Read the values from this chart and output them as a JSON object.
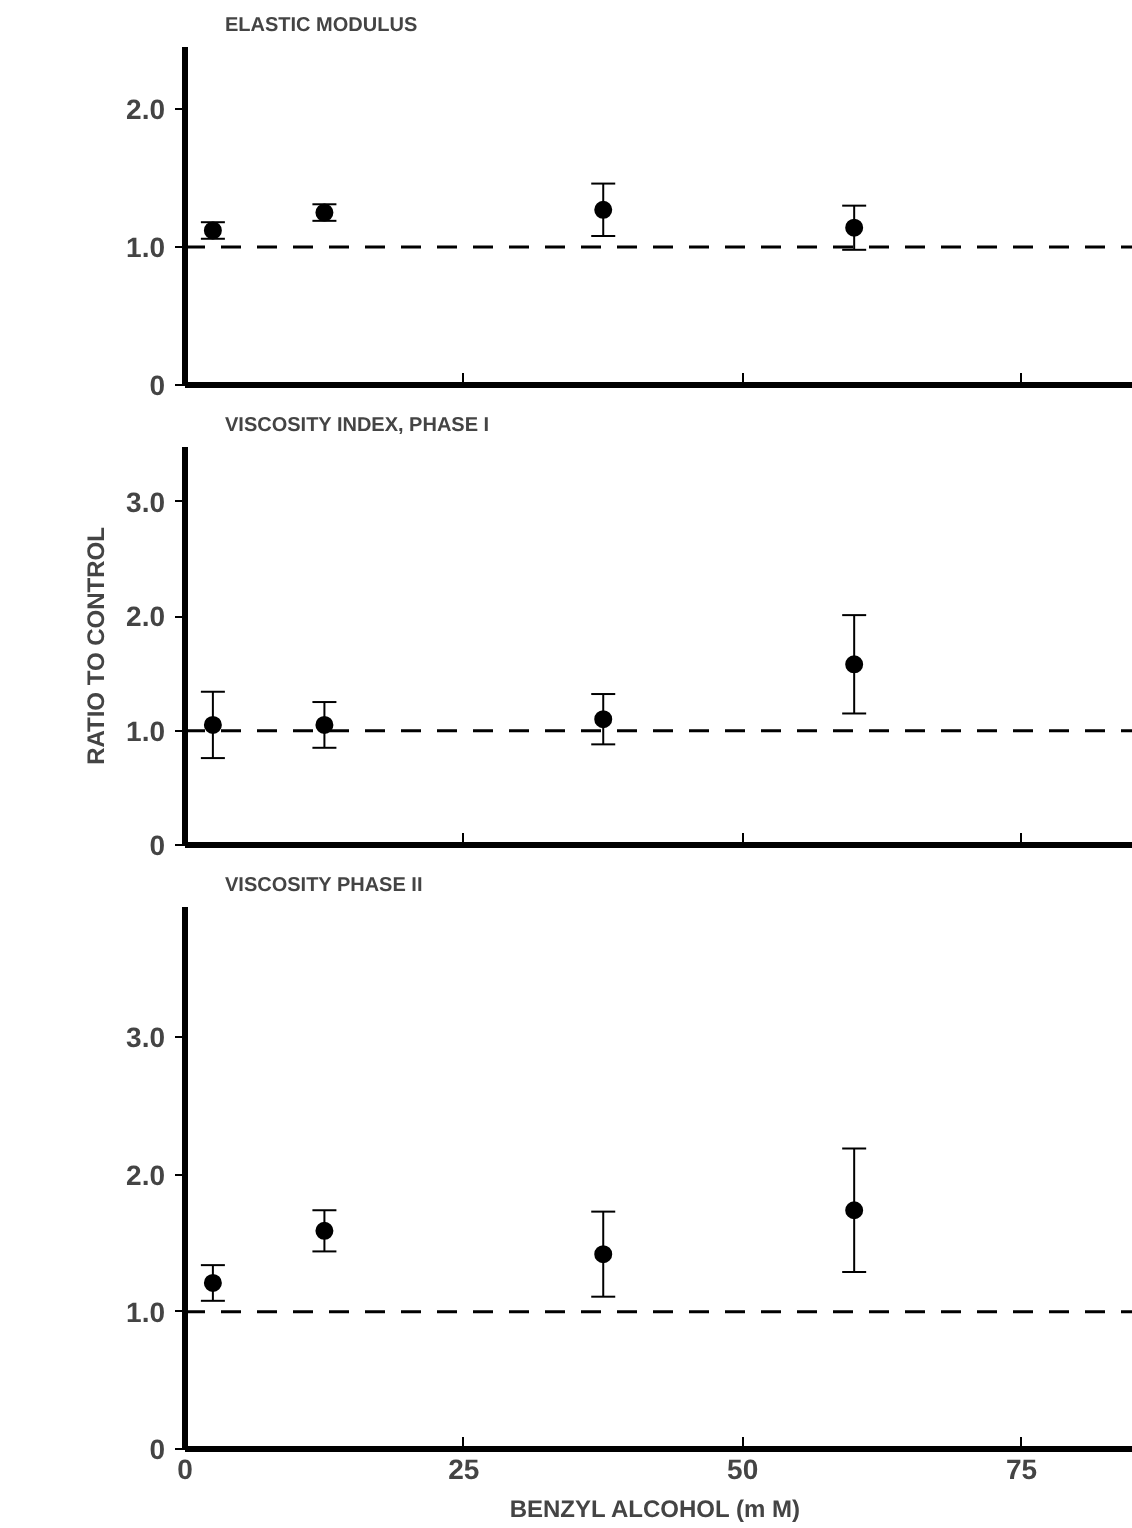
{
  "chart_data": [
    {
      "type": "scatter",
      "title": "ELASTIC MODULUS",
      "x": [
        2.5,
        12.5,
        37.5,
        60
      ],
      "values": [
        1.12,
        1.25,
        1.27,
        1.14
      ],
      "errors": [
        0.06,
        0.06,
        0.19,
        0.16
      ],
      "color": "#000000",
      "marker": "circle",
      "xlim": [
        0,
        85
      ],
      "xticks": [
        {
          "value": 0,
          "label": null
        },
        {
          "value": 25,
          "label": null
        },
        {
          "value": 50,
          "label": null
        },
        {
          "value": 75,
          "label": null
        }
      ],
      "ylim": [
        0,
        2.45
      ],
      "yticks": [
        0,
        {
          "value": 1,
          "label": "1.0"
        },
        {
          "value": 2,
          "label": "2.0"
        }
      ],
      "ref_lines": [
        {
          "axis": "y",
          "value": 1,
          "label": null,
          "line_style": "dashed"
        }
      ],
      "tick_labels": "y",
      "grid": false
    },
    {
      "type": "scatter",
      "title": "VISCOSITY INDEX,  PHASE I",
      "ylabel": "RATIO TO CONTROL",
      "x": [
        2.5,
        12.5,
        37.5,
        60
      ],
      "values": [
        1.05,
        1.05,
        1.1,
        1.58
      ],
      "errors": [
        0.29,
        0.2,
        0.22,
        0.43
      ],
      "color": "#000000",
      "marker": "circle",
      "xlim": [
        0,
        85
      ],
      "xticks": [
        {
          "value": 0,
          "label": null
        },
        {
          "value": 25,
          "label": null
        },
        {
          "value": 50,
          "label": null
        },
        {
          "value": 75,
          "label": null
        }
      ],
      "ylim": [
        0,
        3.48
      ],
      "yticks": [
        0,
        {
          "value": 1,
          "label": "1.0"
        },
        {
          "value": 2,
          "label": "2.0"
        },
        {
          "value": 3,
          "label": "3.0"
        }
      ],
      "ref_lines": [
        {
          "axis": "y",
          "value": 1,
          "label": null,
          "line_style": "dashed"
        }
      ],
      "tick_labels": "y",
      "grid": false
    },
    {
      "type": "scatter",
      "title": "VISCOSITY   PHASE II",
      "xlabel": "BENZYL ALCOHOL  (m M)",
      "x": [
        2.5,
        12.5,
        37.5,
        60
      ],
      "values": [
        1.21,
        1.59,
        1.42,
        1.74
      ],
      "errors": [
        0.13,
        0.15,
        0.31,
        0.45
      ],
      "color": "#000000",
      "marker": "circle",
      "xlim": [
        0,
        85
      ],
      "xticks": [
        0,
        25,
        50,
        75
      ],
      "ylim": [
        0,
        3.95
      ],
      "yticks": [
        0,
        {
          "value": 1,
          "label": "1.0"
        },
        {
          "value": 2,
          "label": "2.0"
        },
        {
          "value": 3,
          "label": "3.0"
        }
      ],
      "ref_lines": [
        {
          "axis": "y",
          "value": 1,
          "label": null,
          "line_style": "dashed"
        }
      ],
      "grid": false
    }
  ]
}
